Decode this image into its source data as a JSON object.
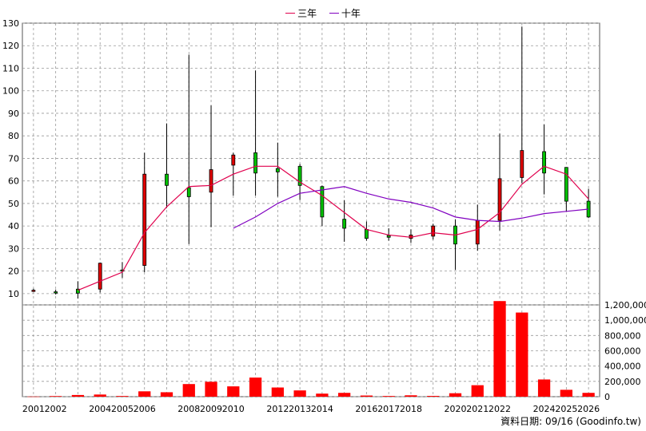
{
  "legend": {
    "ma3_label": "三年",
    "ma10_label": "十年",
    "ma3_color": "#e0004d",
    "ma10_color": "#8000c0"
  },
  "footer": "資料日期: 09/16  (Goodinfo.tw)",
  "chart_data": [
    {
      "type": "candlestick",
      "ylim": [
        5,
        130
      ],
      "yticks": [
        10,
        20,
        30,
        40,
        50,
        60,
        70,
        80,
        90,
        100,
        110,
        120,
        130
      ],
      "x_labels": [
        "2001",
        "2002",
        "",
        "2004",
        "2005",
        "2006",
        "",
        "2008",
        "2009",
        "2010",
        "",
        "2012",
        "2013",
        "2014",
        "",
        "2016",
        "2017",
        "2018",
        "",
        "2020",
        "2021",
        "2022",
        "",
        "2024",
        "2025",
        "2026"
      ],
      "up_color": "#00c000",
      "down_color": "#e00000",
      "candles": [
        {
          "year": "2001",
          "open": 11.5,
          "high": 12.2,
          "low": 10.8,
          "close": 11.2
        },
        {
          "year": "2002",
          "open": 10.3,
          "high": 11.8,
          "low": 9.6,
          "close": 10.8
        },
        {
          "year": "2003",
          "open": 10.2,
          "high": 15.5,
          "low": 7.8,
          "close": 12.0
        },
        {
          "year": "2004",
          "open": 23.5,
          "high": 23.8,
          "low": 10.5,
          "close": 12.0
        },
        {
          "year": "2005",
          "open": 20.5,
          "high": 24.0,
          "low": 17.0,
          "close": 20.5
        },
        {
          "year": "2006",
          "open": 63.0,
          "high": 72.5,
          "low": 19.5,
          "close": 22.5
        },
        {
          "year": "2007",
          "open": 58.0,
          "high": 85.5,
          "low": 48.0,
          "close": 63.0
        },
        {
          "year": "2008",
          "open": 53.0,
          "high": 116.0,
          "low": 32.0,
          "close": 57.0
        },
        {
          "year": "2009",
          "open": 65.0,
          "high": 93.5,
          "low": 39.5,
          "close": 55.0
        },
        {
          "year": "2010",
          "open": 71.5,
          "high": 72.5,
          "low": 53.5,
          "close": 67.0
        },
        {
          "year": "2011",
          "open": 63.5,
          "high": 109.0,
          "low": 53.5,
          "close": 72.5
        },
        {
          "year": "2012",
          "open": 64.0,
          "high": 77.0,
          "low": 53.0,
          "close": 65.5
        },
        {
          "year": "2013",
          "open": 58.0,
          "high": 67.5,
          "low": 51.5,
          "close": 66.5
        },
        {
          "year": "2014",
          "open": 44.0,
          "high": 58.0,
          "low": 40.0,
          "close": 57.5
        },
        {
          "year": "2015",
          "open": 39.0,
          "high": 51.5,
          "low": 33.0,
          "close": 43.0
        },
        {
          "year": "2016",
          "open": 34.5,
          "high": 42.0,
          "low": 33.5,
          "close": 38.5
        },
        {
          "year": "2017",
          "open": 35.0,
          "high": 39.0,
          "low": 33.5,
          "close": 35.8
        },
        {
          "year": "2018",
          "open": 36.0,
          "high": 38.5,
          "low": 32.5,
          "close": 34.5
        },
        {
          "year": "2019",
          "open": 40.0,
          "high": 41.0,
          "low": 34.0,
          "close": 35.5
        },
        {
          "year": "2020",
          "open": 32.0,
          "high": 43.0,
          "low": 20.5,
          "close": 40.0
        },
        {
          "year": "2021",
          "open": 42.5,
          "high": 49.5,
          "low": 29.0,
          "close": 32.0
        },
        {
          "year": "2022",
          "open": 61.0,
          "high": 81.0,
          "low": 38.0,
          "close": 42.5
        },
        {
          "year": "2023",
          "open": 73.5,
          "high": 128.5,
          "low": 59.0,
          "close": 61.5
        },
        {
          "year": "2024",
          "open": 63.5,
          "high": 85.0,
          "low": 54.0,
          "close": 73.0
        },
        {
          "year": "2025",
          "open": 51.0,
          "high": 66.0,
          "low": 46.5,
          "close": 66.0
        },
        {
          "year": "2026",
          "open": 44.0,
          "high": 56.5,
          "low": 43.5,
          "close": 51.0
        }
      ],
      "series": [
        {
          "name": "三年",
          "color": "#e0004d",
          "x": [
            "2003",
            "2004",
            "2005",
            "2006",
            "2007",
            "2008",
            "2009",
            "2010",
            "2011",
            "2012",
            "2013",
            "2014",
            "2015",
            "2016",
            "2017",
            "2018",
            "2019",
            "2020",
            "2021",
            "2022",
            "2023",
            "2024",
            "2025",
            "2026"
          ],
          "values": [
            11.5,
            15.5,
            19.5,
            37.0,
            48.5,
            57.5,
            58.0,
            63.0,
            66.5,
            66.5,
            59.5,
            53.5,
            46.0,
            38.5,
            36.0,
            35.0,
            37.0,
            36.0,
            38.5,
            46.0,
            58.5,
            66.5,
            63.0,
            52.0
          ]
        },
        {
          "name": "十年",
          "color": "#8000c0",
          "x": [
            "2010",
            "2011",
            "2012",
            "2013",
            "2014",
            "2015",
            "2016",
            "2017",
            "2018",
            "2019",
            "2020",
            "2021",
            "2022",
            "2023",
            "2024",
            "2025",
            "2026"
          ],
          "values": [
            39.0,
            44.0,
            50.0,
            54.5,
            56.0,
            57.5,
            54.5,
            52.0,
            50.5,
            48.0,
            44.0,
            42.5,
            42.0,
            43.5,
            45.5,
            46.5,
            47.5
          ]
        }
      ]
    },
    {
      "type": "bar",
      "ylim": [
        0,
        1200000
      ],
      "yticks": [
        "0",
        "200,000",
        "400,000",
        "600,000",
        "800,000",
        "1,000,000",
        "1,200,000"
      ],
      "ytick_values": [
        0,
        200000,
        400000,
        600000,
        800000,
        1000000,
        1200000
      ],
      "bar_color": "#ff0000",
      "categories": [
        "2001",
        "2002",
        "2003",
        "2004",
        "2005",
        "2006",
        "2007",
        "2008",
        "2009",
        "2010",
        "2011",
        "2012",
        "2013",
        "2014",
        "2015",
        "2016",
        "2017",
        "2018",
        "2019",
        "2020",
        "2021",
        "2022",
        "2023",
        "2024",
        "2025",
        "2026"
      ],
      "values": [
        2000,
        8000,
        22000,
        28000,
        9000,
        70000,
        58000,
        165000,
        195000,
        135000,
        250000,
        120000,
        82000,
        40000,
        50000,
        15000,
        9000,
        18000,
        10000,
        45000,
        150000,
        1250000,
        1100000,
        225000,
        90000,
        50000
      ]
    }
  ]
}
